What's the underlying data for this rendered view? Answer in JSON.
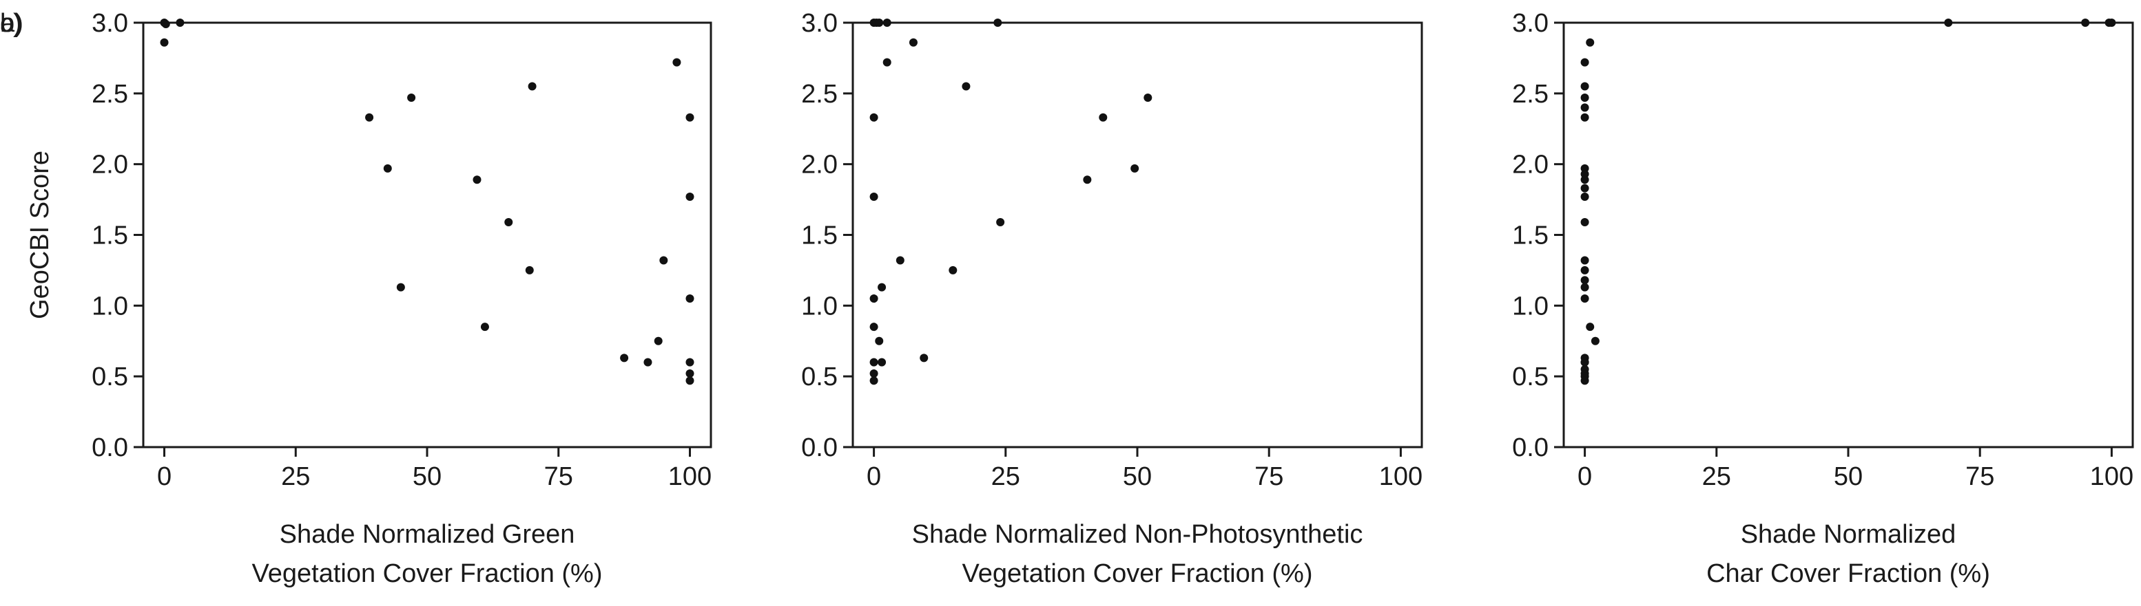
{
  "chart_data": [
    {
      "type": "scatter",
      "panel_label": "a)",
      "xlabel": [
        "Shade Normalized Green",
        "Vegetation Cover Fraction (%)"
      ],
      "ylabel": "GeoCBI Score",
      "xlim": [
        -4,
        104
      ],
      "ylim": [
        0,
        3
      ],
      "xticks": [
        0,
        25,
        50,
        75,
        100
      ],
      "yticks": [
        0.0,
        0.5,
        1.0,
        1.5,
        2.0,
        2.5,
        3.0
      ],
      "ytick_labels": [
        "0.0",
        "0.5",
        "1.0",
        "1.5",
        "2.0",
        "2.5",
        "3.0"
      ],
      "grid": false,
      "series": [
        {
          "x": [
            0,
            0.3,
            3,
            0,
            39,
            47,
            70,
            97.5,
            100,
            42.5,
            59.5,
            65.5,
            100,
            69.5,
            95,
            45,
            61,
            100,
            87.5,
            94,
            92,
            100,
            100,
            100
          ],
          "y": [
            3.0,
            2.99,
            3.0,
            2.86,
            2.33,
            2.47,
            2.55,
            2.72,
            2.33,
            1.97,
            1.89,
            1.59,
            1.77,
            1.25,
            1.32,
            1.13,
            0.85,
            1.05,
            0.63,
            0.75,
            0.6,
            0.6,
            0.52,
            0.47
          ]
        }
      ]
    },
    {
      "type": "scatter",
      "panel_label": "b)",
      "xlabel": [
        "Shade Normalized Non-Photosynthetic",
        "Vegetation Cover Fraction (%)"
      ],
      "ylabel": "",
      "xlim": [
        -4,
        104
      ],
      "ylim": [
        0,
        3
      ],
      "xticks": [
        0,
        25,
        50,
        75,
        100
      ],
      "yticks": [
        0.0,
        0.5,
        1.0,
        1.5,
        2.0,
        2.5,
        3.0
      ],
      "ytick_labels": [
        "0.0",
        "0.5",
        "1.0",
        "1.5",
        "2.0",
        "2.5",
        "3.0"
      ],
      "grid": false,
      "series": [
        {
          "x": [
            0,
            0.5,
            1,
            2.5,
            23.5,
            7.5,
            2.5,
            0,
            17.5,
            52,
            43.5,
            0,
            40.5,
            49.5,
            24,
            5,
            15,
            1.5,
            0,
            0,
            1,
            9.5,
            0,
            1.5,
            0,
            0
          ],
          "y": [
            3.0,
            3.0,
            3.0,
            3.0,
            3.0,
            2.86,
            2.72,
            2.33,
            2.55,
            2.47,
            2.33,
            1.77,
            1.89,
            1.97,
            1.59,
            1.32,
            1.25,
            1.13,
            1.05,
            0.85,
            0.75,
            0.63,
            0.6,
            0.6,
            0.52,
            0.47
          ]
        }
      ]
    },
    {
      "type": "scatter",
      "panel_label": "c)",
      "xlabel": [
        "Shade Normalized",
        "Char Cover Fraction (%)"
      ],
      "ylabel": "",
      "xlim": [
        -4,
        104
      ],
      "ylim": [
        0,
        3
      ],
      "xticks": [
        0,
        25,
        50,
        75,
        100
      ],
      "yticks": [
        0.0,
        0.5,
        1.0,
        1.5,
        2.0,
        2.5,
        3.0
      ],
      "ytick_labels": [
        "0.0",
        "0.5",
        "1.0",
        "1.5",
        "2.0",
        "2.5",
        "3.0"
      ],
      "grid": false,
      "series": [
        {
          "x": [
            69,
            95,
            99.5,
            100,
            1,
            0,
            0,
            0,
            0,
            0,
            0,
            0,
            0,
            0,
            0,
            0,
            0,
            0,
            0,
            0,
            0,
            0,
            0,
            0,
            1,
            2,
            0,
            0,
            0,
            0
          ],
          "y": [
            3.0,
            3.0,
            3.0,
            3.0,
            2.86,
            2.72,
            2.55,
            2.47,
            2.4,
            2.33,
            1.97,
            1.93,
            1.89,
            1.83,
            1.77,
            1.59,
            1.32,
            1.25,
            1.18,
            1.13,
            1.05,
            0.63,
            0.6,
            0.55,
            0.85,
            0.75,
            0.6,
            0.52,
            0.5,
            0.47
          ]
        }
      ]
    }
  ]
}
